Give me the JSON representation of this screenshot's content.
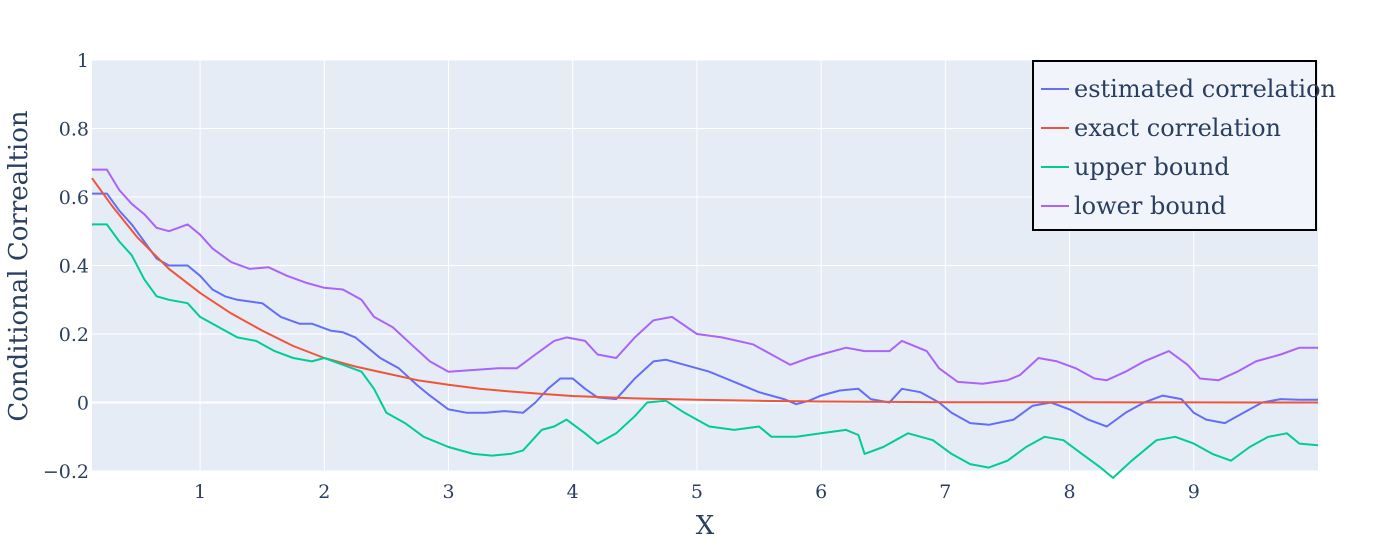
{
  "chart_data": {
    "type": "line",
    "xlabel": "X",
    "ylabel": "Conditional Correaltion",
    "xlim": [
      0.13,
      10.0
    ],
    "ylim": [
      -0.2,
      1.0
    ],
    "x_ticks": [
      "1",
      "2",
      "3",
      "4",
      "5",
      "6",
      "7",
      "8",
      "9"
    ],
    "y_ticks": [
      "−0.2",
      "0",
      "0.2",
      "0.4",
      "0.6",
      "0.8",
      "1"
    ],
    "grid": true,
    "legend_position": "top-right",
    "series": [
      {
        "name": "estimated correlation",
        "color": "#636efa",
        "points": [
          [
            0.13,
            0.61
          ],
          [
            0.25,
            0.61
          ],
          [
            0.35,
            0.56
          ],
          [
            0.45,
            0.52
          ],
          [
            0.55,
            0.47
          ],
          [
            0.65,
            0.42
          ],
          [
            0.75,
            0.4
          ],
          [
            0.9,
            0.4
          ],
          [
            1.0,
            0.37
          ],
          [
            1.1,
            0.33
          ],
          [
            1.2,
            0.31
          ],
          [
            1.3,
            0.3
          ],
          [
            1.5,
            0.29
          ],
          [
            1.65,
            0.25
          ],
          [
            1.8,
            0.23
          ],
          [
            1.9,
            0.23
          ],
          [
            2.05,
            0.21
          ],
          [
            2.15,
            0.205
          ],
          [
            2.25,
            0.19
          ],
          [
            2.35,
            0.16
          ],
          [
            2.45,
            0.13
          ],
          [
            2.6,
            0.1
          ],
          [
            2.75,
            0.05
          ],
          [
            2.85,
            0.02
          ],
          [
            3.0,
            -0.02
          ],
          [
            3.15,
            -0.03
          ],
          [
            3.3,
            -0.03
          ],
          [
            3.45,
            -0.025
          ],
          [
            3.6,
            -0.03
          ],
          [
            3.7,
            0.0
          ],
          [
            3.8,
            0.04
          ],
          [
            3.9,
            0.07
          ],
          [
            4.0,
            0.07
          ],
          [
            4.1,
            0.04
          ],
          [
            4.2,
            0.015
          ],
          [
            4.35,
            0.01
          ],
          [
            4.5,
            0.07
          ],
          [
            4.65,
            0.12
          ],
          [
            4.75,
            0.125
          ],
          [
            4.9,
            0.11
          ],
          [
            5.1,
            0.09
          ],
          [
            5.3,
            0.06
          ],
          [
            5.5,
            0.03
          ],
          [
            5.7,
            0.01
          ],
          [
            5.8,
            -0.005
          ],
          [
            5.9,
            0.005
          ],
          [
            6.0,
            0.02
          ],
          [
            6.15,
            0.035
          ],
          [
            6.3,
            0.04
          ],
          [
            6.4,
            0.01
          ],
          [
            6.55,
            0.0
          ],
          [
            6.65,
            0.04
          ],
          [
            6.8,
            0.03
          ],
          [
            6.95,
            0.0
          ],
          [
            7.05,
            -0.03
          ],
          [
            7.2,
            -0.06
          ],
          [
            7.35,
            -0.065
          ],
          [
            7.55,
            -0.05
          ],
          [
            7.7,
            -0.01
          ],
          [
            7.85,
            0.0
          ],
          [
            8.0,
            -0.02
          ],
          [
            8.15,
            -0.05
          ],
          [
            8.3,
            -0.07
          ],
          [
            8.45,
            -0.03
          ],
          [
            8.6,
            0.0
          ],
          [
            8.75,
            0.02
          ],
          [
            8.9,
            0.01
          ],
          [
            9.0,
            -0.03
          ],
          [
            9.1,
            -0.05
          ],
          [
            9.25,
            -0.06
          ],
          [
            9.4,
            -0.03
          ],
          [
            9.55,
            0.0
          ],
          [
            9.7,
            0.01
          ],
          [
            9.85,
            0.008
          ],
          [
            10.0,
            0.008
          ]
        ]
      },
      {
        "name": "exact correlation",
        "color": "#ef553b",
        "points": [
          [
            0.13,
            0.655
          ],
          [
            0.3,
            0.57
          ],
          [
            0.5,
            0.48
          ],
          [
            0.75,
            0.39
          ],
          [
            1.0,
            0.32
          ],
          [
            1.25,
            0.26
          ],
          [
            1.5,
            0.21
          ],
          [
            1.75,
            0.165
          ],
          [
            2.0,
            0.13
          ],
          [
            2.25,
            0.105
          ],
          [
            2.5,
            0.085
          ],
          [
            2.75,
            0.065
          ],
          [
            3.0,
            0.052
          ],
          [
            3.25,
            0.04
          ],
          [
            3.5,
            0.032
          ],
          [
            3.75,
            0.025
          ],
          [
            4.0,
            0.019
          ],
          [
            4.5,
            0.012
          ],
          [
            5.0,
            0.008
          ],
          [
            5.5,
            0.005
          ],
          [
            6.0,
            0.003
          ],
          [
            7.0,
            0.001
          ],
          [
            8.0,
            0.0005
          ],
          [
            9.0,
            0.0002
          ],
          [
            10.0,
            0.0
          ]
        ]
      },
      {
        "name": "upper bound",
        "color": "#00cc96",
        "points": [
          [
            0.13,
            0.52
          ],
          [
            0.25,
            0.52
          ],
          [
            0.35,
            0.47
          ],
          [
            0.45,
            0.43
          ],
          [
            0.55,
            0.36
          ],
          [
            0.65,
            0.31
          ],
          [
            0.75,
            0.3
          ],
          [
            0.9,
            0.29
          ],
          [
            1.0,
            0.25
          ],
          [
            1.15,
            0.22
          ],
          [
            1.3,
            0.19
          ],
          [
            1.45,
            0.18
          ],
          [
            1.6,
            0.15
          ],
          [
            1.75,
            0.13
          ],
          [
            1.9,
            0.12
          ],
          [
            2.0,
            0.13
          ],
          [
            2.15,
            0.11
          ],
          [
            2.3,
            0.09
          ],
          [
            2.4,
            0.04
          ],
          [
            2.5,
            -0.03
          ],
          [
            2.65,
            -0.06
          ],
          [
            2.8,
            -0.1
          ],
          [
            3.0,
            -0.13
          ],
          [
            3.2,
            -0.15
          ],
          [
            3.35,
            -0.155
          ],
          [
            3.5,
            -0.15
          ],
          [
            3.6,
            -0.14
          ],
          [
            3.75,
            -0.08
          ],
          [
            3.85,
            -0.07
          ],
          [
            3.95,
            -0.05
          ],
          [
            4.1,
            -0.09
          ],
          [
            4.2,
            -0.12
          ],
          [
            4.35,
            -0.09
          ],
          [
            4.5,
            -0.04
          ],
          [
            4.6,
            0.0
          ],
          [
            4.75,
            0.005
          ],
          [
            4.9,
            -0.03
          ],
          [
            5.1,
            -0.07
          ],
          [
            5.3,
            -0.08
          ],
          [
            5.5,
            -0.07
          ],
          [
            5.6,
            -0.1
          ],
          [
            5.8,
            -0.1
          ],
          [
            6.0,
            -0.09
          ],
          [
            6.2,
            -0.08
          ],
          [
            6.3,
            -0.095
          ],
          [
            6.35,
            -0.15
          ],
          [
            6.5,
            -0.13
          ],
          [
            6.7,
            -0.09
          ],
          [
            6.9,
            -0.11
          ],
          [
            7.05,
            -0.15
          ],
          [
            7.2,
            -0.18
          ],
          [
            7.35,
            -0.19
          ],
          [
            7.5,
            -0.17
          ],
          [
            7.65,
            -0.13
          ],
          [
            7.8,
            -0.1
          ],
          [
            7.95,
            -0.11
          ],
          [
            8.1,
            -0.15
          ],
          [
            8.25,
            -0.19
          ],
          [
            8.35,
            -0.22
          ],
          [
            8.5,
            -0.17
          ],
          [
            8.7,
            -0.11
          ],
          [
            8.85,
            -0.1
          ],
          [
            9.0,
            -0.12
          ],
          [
            9.15,
            -0.15
          ],
          [
            9.3,
            -0.17
          ],
          [
            9.45,
            -0.13
          ],
          [
            9.6,
            -0.1
          ],
          [
            9.75,
            -0.09
          ],
          [
            9.85,
            -0.12
          ],
          [
            10.0,
            -0.125
          ]
        ]
      },
      {
        "name": "lower bound",
        "color": "#ab63fa",
        "points": [
          [
            0.13,
            0.68
          ],
          [
            0.25,
            0.68
          ],
          [
            0.35,
            0.62
          ],
          [
            0.45,
            0.58
          ],
          [
            0.55,
            0.55
          ],
          [
            0.65,
            0.51
          ],
          [
            0.75,
            0.5
          ],
          [
            0.9,
            0.52
          ],
          [
            1.0,
            0.49
          ],
          [
            1.1,
            0.45
          ],
          [
            1.25,
            0.41
          ],
          [
            1.4,
            0.39
          ],
          [
            1.55,
            0.395
          ],
          [
            1.7,
            0.37
          ],
          [
            1.85,
            0.35
          ],
          [
            2.0,
            0.335
          ],
          [
            2.15,
            0.33
          ],
          [
            2.3,
            0.3
          ],
          [
            2.4,
            0.25
          ],
          [
            2.55,
            0.22
          ],
          [
            2.7,
            0.17
          ],
          [
            2.85,
            0.12
          ],
          [
            3.0,
            0.09
          ],
          [
            3.2,
            0.095
          ],
          [
            3.4,
            0.1
          ],
          [
            3.55,
            0.1
          ],
          [
            3.7,
            0.14
          ],
          [
            3.85,
            0.18
          ],
          [
            3.95,
            0.19
          ],
          [
            4.1,
            0.18
          ],
          [
            4.2,
            0.14
          ],
          [
            4.35,
            0.13
          ],
          [
            4.5,
            0.19
          ],
          [
            4.65,
            0.24
          ],
          [
            4.8,
            0.25
          ],
          [
            5.0,
            0.2
          ],
          [
            5.2,
            0.19
          ],
          [
            5.45,
            0.17
          ],
          [
            5.6,
            0.14
          ],
          [
            5.75,
            0.11
          ],
          [
            5.9,
            0.13
          ],
          [
            6.0,
            0.14
          ],
          [
            6.2,
            0.16
          ],
          [
            6.35,
            0.15
          ],
          [
            6.55,
            0.15
          ],
          [
            6.65,
            0.18
          ],
          [
            6.85,
            0.15
          ],
          [
            6.95,
            0.1
          ],
          [
            7.1,
            0.06
          ],
          [
            7.3,
            0.055
          ],
          [
            7.5,
            0.065
          ],
          [
            7.6,
            0.08
          ],
          [
            7.75,
            0.13
          ],
          [
            7.9,
            0.12
          ],
          [
            8.05,
            0.1
          ],
          [
            8.2,
            0.07
          ],
          [
            8.3,
            0.065
          ],
          [
            8.45,
            0.09
          ],
          [
            8.6,
            0.12
          ],
          [
            8.8,
            0.15
          ],
          [
            8.95,
            0.11
          ],
          [
            9.05,
            0.07
          ],
          [
            9.2,
            0.065
          ],
          [
            9.35,
            0.09
          ],
          [
            9.5,
            0.12
          ],
          [
            9.7,
            0.14
          ],
          [
            9.85,
            0.16
          ],
          [
            10.0,
            0.16
          ]
        ]
      }
    ]
  }
}
